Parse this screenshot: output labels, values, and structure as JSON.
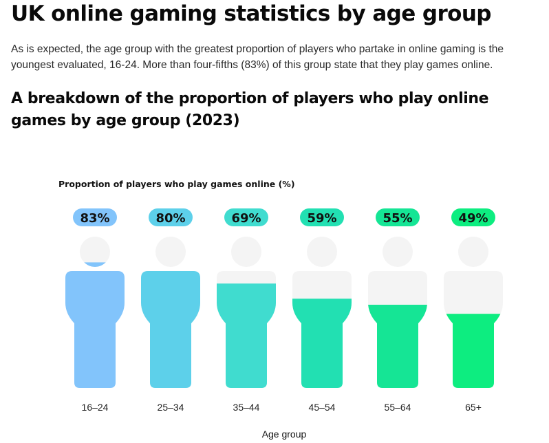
{
  "article": {
    "title": "UK online gaming statistics by age group",
    "intro": "As is expected, the age group with the greatest proportion of players who partake in online gaming is the youngest evaluated, 16-24. More than four-fifths (83%) of this group state that they play games online.",
    "section_heading": "A breakdown of the proportion of players who play online games by age group (2023)"
  },
  "chart_data": {
    "type": "bar",
    "ylabel": "Proportion of players who play games online (%)",
    "xlabel": "Age group",
    "categories": [
      "16–24",
      "25–34",
      "35–44",
      "45–54",
      "55–64",
      "65+"
    ],
    "values": [
      83,
      80,
      69,
      59,
      55,
      49
    ],
    "value_labels": [
      "83%",
      "80%",
      "69%",
      "59%",
      "55%",
      "49%"
    ],
    "ylim": [
      0,
      100
    ],
    "colors": [
      "#82c4fb",
      "#5dd0ea",
      "#40dccf",
      "#22e0b2",
      "#15e595",
      "#0ded80"
    ],
    "empty_color": "#f4f4f4"
  }
}
